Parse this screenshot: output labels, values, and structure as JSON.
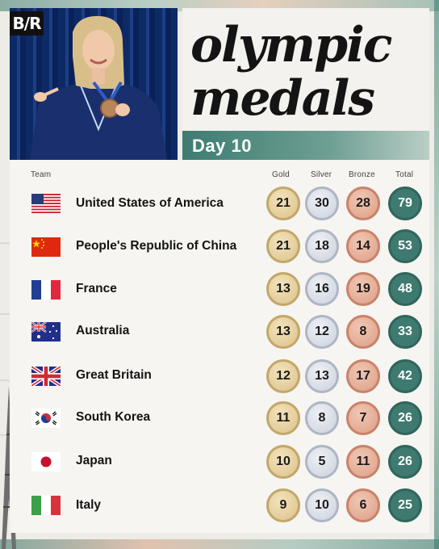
{
  "brand": {
    "logo": "B/R"
  },
  "title": {
    "line1": "olympic",
    "line2": "medals",
    "day": "Day 10"
  },
  "headers": {
    "team": "Team",
    "gold": "Gold",
    "silver": "Silver",
    "bronze": "Bronze",
    "total": "Total"
  },
  "rows": [
    {
      "country": "United States of America",
      "flag": "usa-flag",
      "gold": "21",
      "silver": "30",
      "bronze": "28",
      "total": "79"
    },
    {
      "country": "People's Republic of China",
      "flag": "china-flag",
      "gold": "21",
      "silver": "18",
      "bronze": "14",
      "total": "53"
    },
    {
      "country": "France",
      "flag": "france-flag",
      "gold": "13",
      "silver": "16",
      "bronze": "19",
      "total": "48"
    },
    {
      "country": "Australia",
      "flag": "australia-flag",
      "gold": "13",
      "silver": "12",
      "bronze": "8",
      "total": "33"
    },
    {
      "country": "Great Britain",
      "flag": "uk-flag",
      "gold": "12",
      "silver": "13",
      "bronze": "17",
      "total": "42"
    },
    {
      "country": "South Korea",
      "flag": "south-korea-flag",
      "gold": "11",
      "silver": "8",
      "bronze": "7",
      "total": "26"
    },
    {
      "country": "Japan",
      "flag": "japan-flag",
      "gold": "10",
      "silver": "5",
      "bronze": "11",
      "total": "26"
    },
    {
      "country": "Italy",
      "flag": "italy-flag",
      "gold": "9",
      "silver": "10",
      "bronze": "6",
      "total": "25"
    }
  ],
  "colors": {
    "gold": "#dcc28c",
    "silver": "#cbd1dc",
    "bronze": "#dc9f86",
    "total": "#3e7a6f",
    "accent": "#3d7c71"
  }
}
